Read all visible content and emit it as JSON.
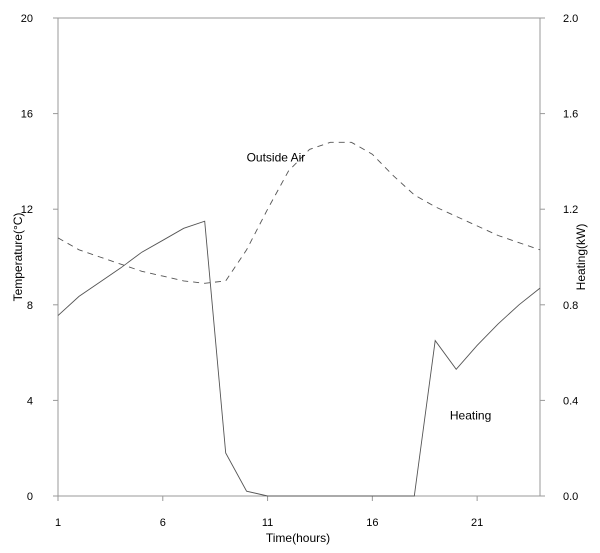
{
  "chart_data": {
    "type": "line",
    "title": "",
    "xlabel": "Time(hours)",
    "ylabel": "Temperature(°C)",
    "y2label": "Heating(kW)",
    "xlim": [
      1,
      24
    ],
    "ylim": [
      0,
      20
    ],
    "y2lim": [
      0,
      2
    ],
    "xticks": [
      "1",
      "6",
      "11",
      "16",
      "21"
    ],
    "yticks": [
      "0",
      "4",
      "8",
      "12",
      "16",
      "20"
    ],
    "y2ticks": [
      "0.0",
      "0.4",
      "0.8",
      "1.2",
      "1.6",
      "2.0"
    ],
    "grid": false,
    "legend": "none",
    "series": [
      {
        "axis": "left",
        "style": "dashed",
        "color": "#555555",
        "x": [
          1,
          2,
          3,
          4,
          5,
          6,
          7,
          8,
          9,
          10,
          11,
          12,
          13,
          14,
          15,
          16,
          17,
          18,
          19,
          20,
          21,
          22,
          23,
          24
        ],
        "y": [
          10.8,
          10.3,
          10.0,
          9.7,
          9.4,
          9.2,
          9.0,
          8.9,
          9.0,
          10.3,
          12.0,
          13.6,
          14.5,
          14.8,
          14.8,
          14.3,
          13.4,
          12.6,
          12.1,
          11.7,
          11.3,
          10.9,
          10.6,
          10.3
        ]
      },
      {
        "axis": "right",
        "style": "solid",
        "color": "#555555",
        "x": [
          1,
          2,
          3,
          4,
          5,
          6,
          7,
          8,
          9,
          10,
          11,
          12,
          13,
          14,
          15,
          16,
          17,
          18,
          19,
          20,
          21,
          22,
          23,
          24
        ],
        "y": [
          0.755,
          0.835,
          0.895,
          0.955,
          1.02,
          1.07,
          1.12,
          1.15,
          0.18,
          0.02,
          0.0,
          0.0,
          0.0,
          0.0,
          0.0,
          0.0,
          0.0,
          0.0,
          0.65,
          0.53,
          0.63,
          0.72,
          0.8,
          0.87
        ]
      }
    ],
    "annotations": [
      {
        "text": "Outside Air",
        "x": 10.0,
        "y": 14.0
      },
      {
        "text": "Heating",
        "x": 19.7,
        "y": 3.2
      }
    ]
  }
}
